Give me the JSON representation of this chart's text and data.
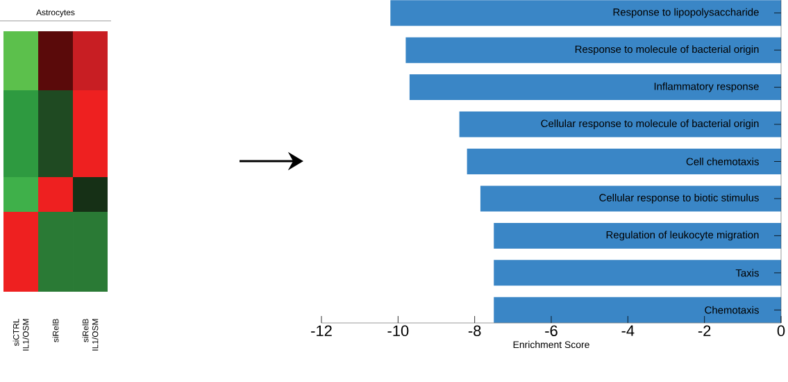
{
  "chart_data": [
    {
      "type": "other",
      "title": "Astrocytes",
      "annotations": [
        "siCTRL IL1/OSM",
        "siRelB",
        "siRelB IL1/OSM"
      ]
    },
    {
      "type": "bar",
      "orientation": "horizontal",
      "xlabel": "Enrichment Score",
      "color": "#3a86c6",
      "categories": [
        "Response to lipopolysaccharide",
        "Response to molecule of bacterial origin",
        "Inflammatory response",
        "Cellular response to molecule of bacterial origin",
        "Cell chemotaxis",
        "Cellular response to biotic stimulus",
        "Regulation of leukocyte migration",
        "Taxis",
        "Chemotaxis"
      ],
      "values": [
        -10.2,
        -9.8,
        -9.7,
        -8.4,
        -8.2,
        -7.85,
        -7.5,
        -7.5,
        -7.5
      ],
      "xlim": [
        -12,
        0
      ],
      "xticks": [
        -12,
        -10,
        -8,
        -6,
        -4,
        -2,
        0
      ]
    }
  ]
}
